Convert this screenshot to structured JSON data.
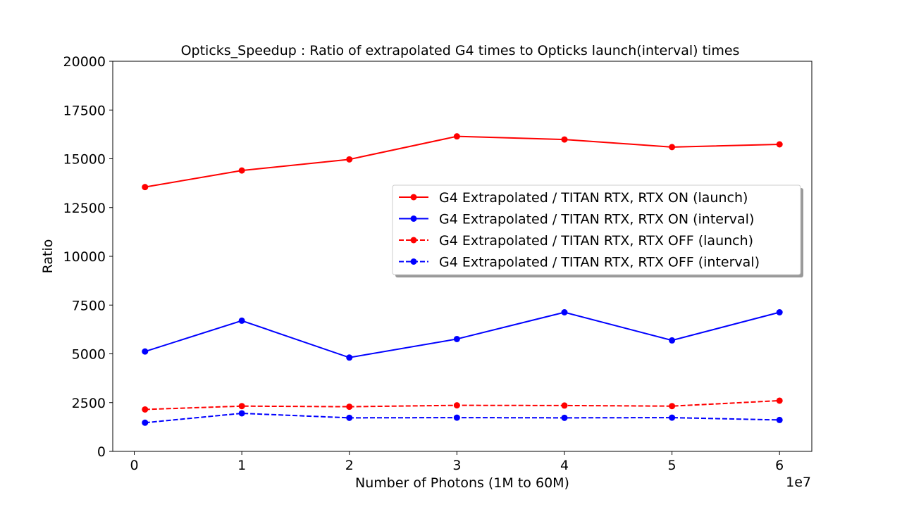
{
  "chart_data": {
    "type": "line",
    "title": "Opticks_Speedup : Ratio of extrapolated G4 times to Opticks launch(interval) times",
    "xlabel": "Number of Photons (1M to 60M)",
    "ylabel": "Ratio",
    "x_offset_label": "1e7",
    "xlim": [
      -0.2,
      6.3
    ],
    "ylim": [
      0,
      20000
    ],
    "x_ticks": [
      0,
      1,
      2,
      3,
      4,
      5,
      6
    ],
    "x_tick_labels": [
      "0",
      "1",
      "2",
      "3",
      "4",
      "5",
      "6"
    ],
    "y_ticks": [
      0,
      2500,
      5000,
      7500,
      10000,
      12500,
      15000,
      17500,
      20000
    ],
    "y_tick_labels": [
      "0",
      "2500",
      "5000",
      "7500",
      "10000",
      "12500",
      "15000",
      "17500",
      "20000"
    ],
    "grid": false,
    "legend_position": "center-right",
    "x": [
      0.1,
      1,
      2,
      3,
      4,
      5,
      6
    ],
    "series": [
      {
        "name": "G4 Extrapolated / TITAN RTX, RTX ON (launch)",
        "color": "#ff0000",
        "dashed": false,
        "values": [
          13550,
          14400,
          14970,
          16150,
          15990,
          15600,
          15740
        ]
      },
      {
        "name": "G4 Extrapolated / TITAN RTX, RTX ON (interval)",
        "color": "#0000ff",
        "dashed": false,
        "values": [
          5120,
          6700,
          4810,
          5760,
          7130,
          5690,
          7130
        ]
      },
      {
        "name": "G4 Extrapolated / TITAN RTX, RTX OFF (launch)",
        "color": "#ff0000",
        "dashed": true,
        "values": [
          2150,
          2320,
          2290,
          2360,
          2350,
          2320,
          2600
        ]
      },
      {
        "name": "G4 Extrapolated / TITAN RTX, RTX OFF (interval)",
        "color": "#0000ff",
        "dashed": true,
        "values": [
          1470,
          1950,
          1720,
          1730,
          1720,
          1730,
          1610
        ]
      }
    ]
  }
}
